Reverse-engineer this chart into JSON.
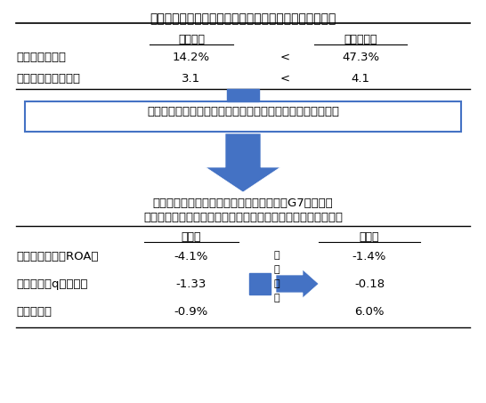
{
  "title": "日本企業の社外取締役比率と雇用調整柔軟度指数の状況",
  "top_table": {
    "col_labels": [
      "日本企業",
      "全サンプル"
    ],
    "rows": [
      {
        "label": "社外取締役比率",
        "val1": "14.2%",
        "val2": "47.3%"
      },
      {
        "label": "雇用調整柔軟度指数",
        "val1": "3.1",
        "val2": "4.1"
      }
    ]
  },
  "box_text": "２つの指標の差異で財務パフォーマンスの差は説明可能か？",
  "mid_text1": "財務指標の差＝日本企業－比較対象企業（G7国企業）",
  "mid_text2": "社外取締役比率と雇用調整柔軟度指数の差異の考慮前と考慮後",
  "bottom_table": {
    "col_labels": [
      "考慮前",
      "考慮後"
    ],
    "rows": [
      {
        "label": "総資産利益率（ROA）",
        "val1": "-4.1%",
        "val2": "-1.4%"
      },
      {
        "label": "市場評価（qレシオ）",
        "val1": "-1.33",
        "val2": "-0.18"
      },
      {
        "label": "売上成長率",
        "val1": "-0.9%",
        "val2": "6.0%"
      }
    ]
  },
  "arrow_color": "#4472C4",
  "box_border_color": "#4472C4",
  "bg_color": "#ffffff",
  "text_color": "#000000",
  "side_chars": [
    "大",
    "幅",
    "縮",
    "小"
  ]
}
